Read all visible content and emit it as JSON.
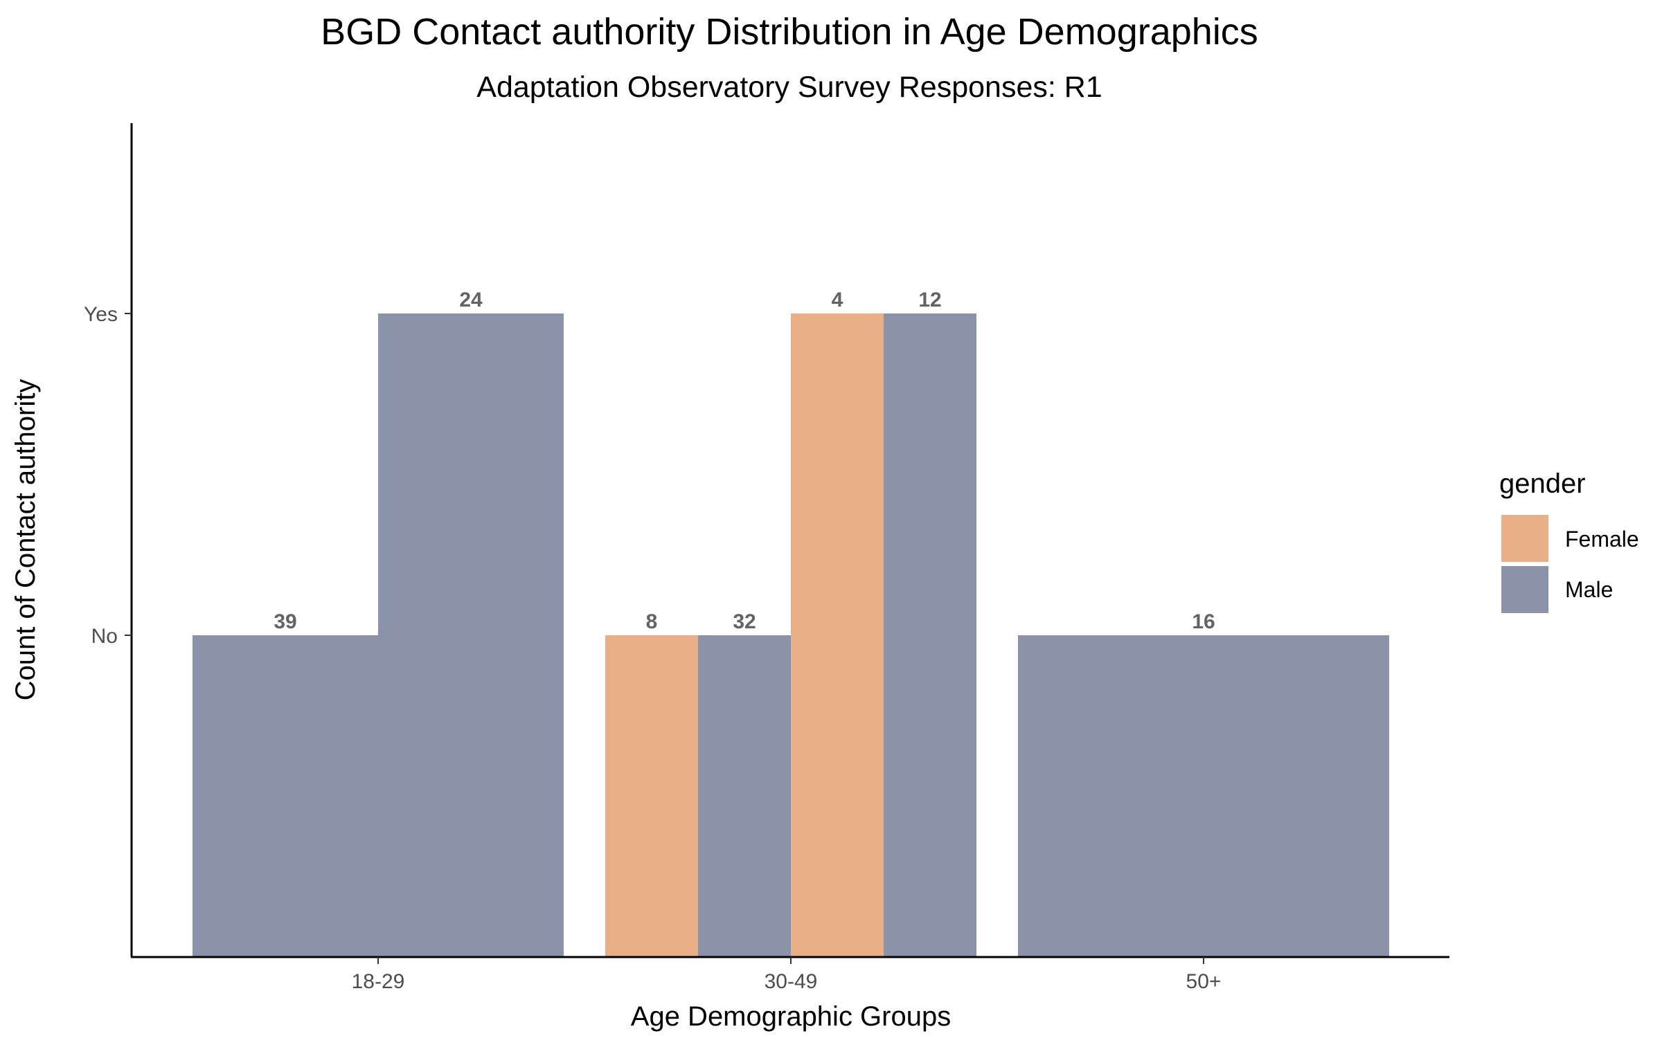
{
  "chart_data": {
    "type": "bar",
    "title": "BGD Contact authority Distribution in Age Demographics",
    "subtitle": "Adaptation Observatory Survey Responses: R1",
    "xlabel": "Age Demographic Groups",
    "ylabel": "Count of Contact authority",
    "categories": [
      "18-29",
      "30-49",
      "50+"
    ],
    "y_categories": [
      "No",
      "Yes"
    ],
    "ylim": [
      0,
      2
    ],
    "grid": false,
    "legend": {
      "title": "gender",
      "position": "right"
    },
    "series": [
      {
        "name": "Female",
        "color": "#e9af86"
      },
      {
        "name": "Male",
        "color": "#8b93ab"
      }
    ],
    "bars": [
      {
        "category": "18-29",
        "gender": "Male",
        "response": "No",
        "count": "39"
      },
      {
        "category": "18-29",
        "gender": "Male",
        "response": "Yes",
        "count": "24"
      },
      {
        "category": "30-49",
        "gender": "Female",
        "response": "No",
        "count": "8"
      },
      {
        "category": "30-49",
        "gender": "Male",
        "response": "No",
        "count": "32"
      },
      {
        "category": "30-49",
        "gender": "Female",
        "response": "Yes",
        "count": "4"
      },
      {
        "category": "30-49",
        "gender": "Male",
        "response": "Yes",
        "count": "12"
      },
      {
        "category": "50+",
        "gender": "Male",
        "response": "No",
        "count": "16"
      }
    ]
  }
}
